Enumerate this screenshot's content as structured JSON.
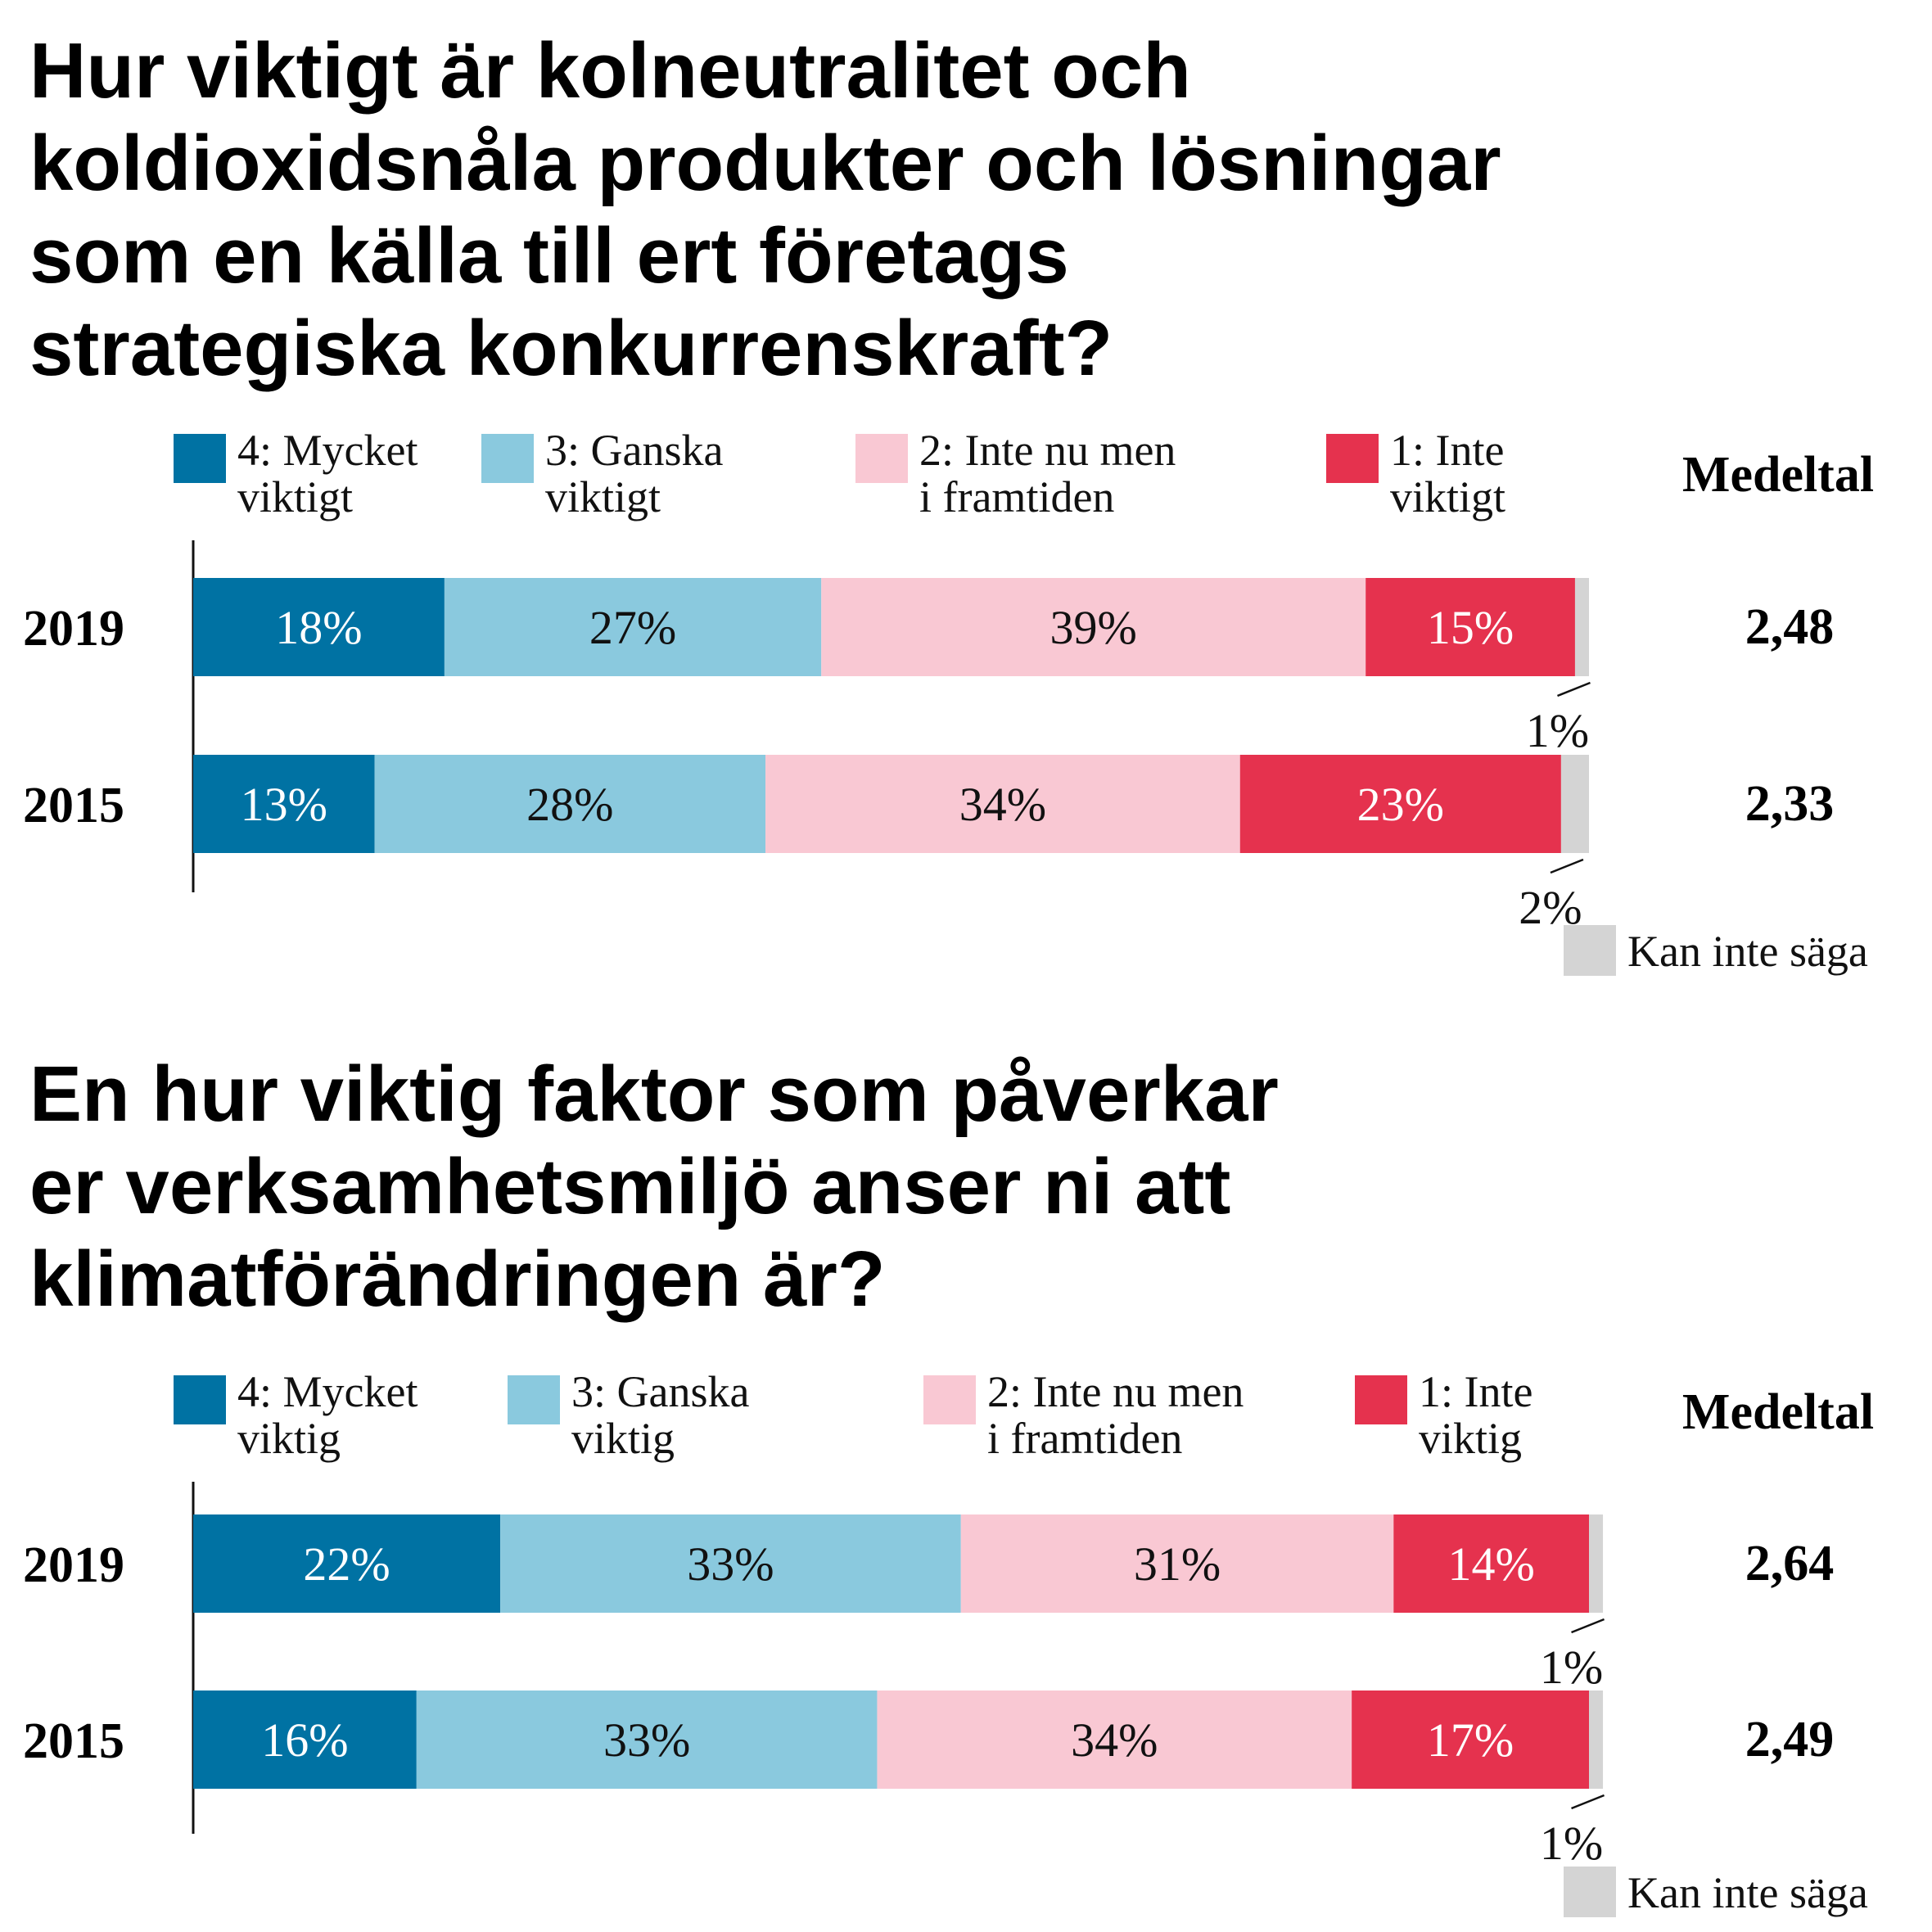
{
  "chart_data": [
    {
      "type": "bar",
      "stacked": true,
      "orientation": "horizontal",
      "title": "Hur viktigt är kolneutralitet och\nkoldioxidsnåla produkter och lösningar\nsom en källa till ert företags\nstrategiska konkurrenskraft?",
      "categories": [
        "2019",
        "2015"
      ],
      "series": [
        {
          "name": "4: Mycket viktigt",
          "color": "#0072a3",
          "label_color": "#ffffff",
          "values": [
            18,
            13
          ]
        },
        {
          "name": "3: Ganska viktigt",
          "color": "#8ac9de",
          "label_color": "#111111",
          "values": [
            27,
            28
          ]
        },
        {
          "name": "2: Inte nu men i framtiden",
          "color": "#f9c8d3",
          "label_color": "#111111",
          "values": [
            39,
            34
          ]
        },
        {
          "name": "1: Inte viktigt",
          "color": "#e5324e",
          "label_color": "#ffffff",
          "values": [
            15,
            23
          ]
        },
        {
          "name": "Kan inte säga",
          "color": "#d4d4d4",
          "values": [
            1,
            2
          ]
        }
      ],
      "medeltal_label": "Medeltal",
      "medeltal": [
        "2,48",
        "2,33"
      ],
      "unit": "%",
      "xlim": [
        0,
        100
      ]
    },
    {
      "type": "bar",
      "stacked": true,
      "orientation": "horizontal",
      "title": "En hur viktig faktor som påverkar\ner verksamhetsmiljö anser ni att\nklimatförändringen är?",
      "categories": [
        "2019",
        "2015"
      ],
      "series": [
        {
          "name": "4: Mycket viktig",
          "color": "#0072a3",
          "label_color": "#ffffff",
          "values": [
            22,
            16
          ]
        },
        {
          "name": "3: Ganska viktig",
          "color": "#8ac9de",
          "label_color": "#111111",
          "values": [
            33,
            33
          ]
        },
        {
          "name": "2: Inte nu men i framtiden",
          "color": "#f9c8d3",
          "label_color": "#111111",
          "values": [
            31,
            34
          ]
        },
        {
          "name": "1: Inte viktig",
          "color": "#e5324e",
          "label_color": "#ffffff",
          "values": [
            14,
            17
          ]
        },
        {
          "name": "Kan inte säga",
          "color": "#d4d4d4",
          "values": [
            1,
            1
          ]
        }
      ],
      "medeltal_label": "Medeltal",
      "medeltal": [
        "2,64",
        "2,49"
      ],
      "unit": "%",
      "xlim": [
        0,
        100
      ]
    }
  ]
}
